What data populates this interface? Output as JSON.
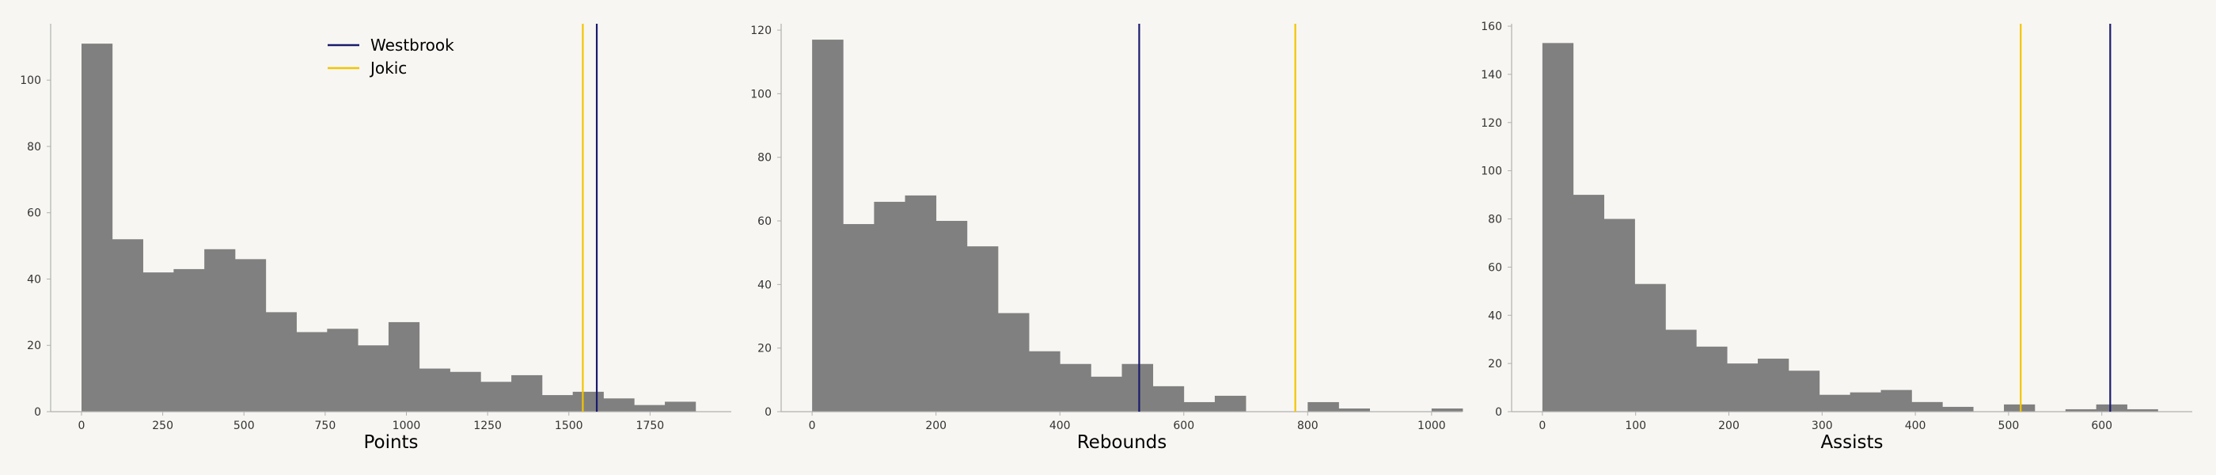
{
  "colors": {
    "background": "#f7f6f2",
    "bar": "#808080",
    "axis": "#b0b0b0",
    "westbrook": "#1a1a6e",
    "jokic": "#f2c500"
  },
  "legend": [
    {
      "label": "Westbrook",
      "color_key": "westbrook"
    },
    {
      "label": "Jokic",
      "color_key": "jokic"
    }
  ],
  "chart_data": [
    {
      "type": "histogram",
      "xlabel": "Points",
      "xlim": [
        -95,
        2000
      ],
      "ylim": [
        0,
        117
      ],
      "xticks": [
        0,
        250,
        500,
        750,
        1000,
        1250,
        1500,
        1750
      ],
      "yticks": [
        0,
        20,
        40,
        60,
        80,
        100
      ],
      "bin_start": 0,
      "bin_width": 94.5,
      "counts": [
        111,
        52,
        42,
        43,
        49,
        46,
        30,
        24,
        25,
        20,
        27,
        13,
        12,
        9,
        11,
        5,
        6,
        4,
        2,
        3
      ],
      "markers": {
        "westbrook": 1586,
        "jokic": 1543
      },
      "legend_position": "top-center"
    },
    {
      "type": "histogram",
      "xlabel": "Rebounds",
      "xlim": [
        -50,
        1050
      ],
      "ylim": [
        0,
        122
      ],
      "xticks": [
        0,
        200,
        400,
        600,
        800,
        1000
      ],
      "yticks": [
        0,
        20,
        40,
        60,
        80,
        100,
        120
      ],
      "bin_start": 0,
      "bin_width": 50,
      "counts": [
        117,
        59,
        66,
        68,
        60,
        52,
        31,
        19,
        15,
        11,
        15,
        8,
        3,
        5,
        0,
        0,
        3,
        1,
        0,
        0,
        1
      ],
      "markers": {
        "westbrook": 528,
        "jokic": 780
      }
    },
    {
      "type": "histogram",
      "xlabel": "Assists",
      "xlim": [
        -33,
        697
      ],
      "ylim": [
        0,
        161
      ],
      "xticks": [
        0,
        100,
        200,
        300,
        400,
        500,
        600
      ],
      "yticks": [
        0,
        20,
        40,
        60,
        80,
        100,
        120,
        140,
        160
      ],
      "bin_start": 0,
      "bin_width": 33,
      "counts": [
        153,
        90,
        80,
        53,
        34,
        27,
        20,
        22,
        17,
        7,
        8,
        9,
        4,
        2,
        0,
        3,
        0,
        1,
        3,
        1
      ],
      "markers": {
        "westbrook": 609,
        "jokic": 513
      }
    }
  ]
}
